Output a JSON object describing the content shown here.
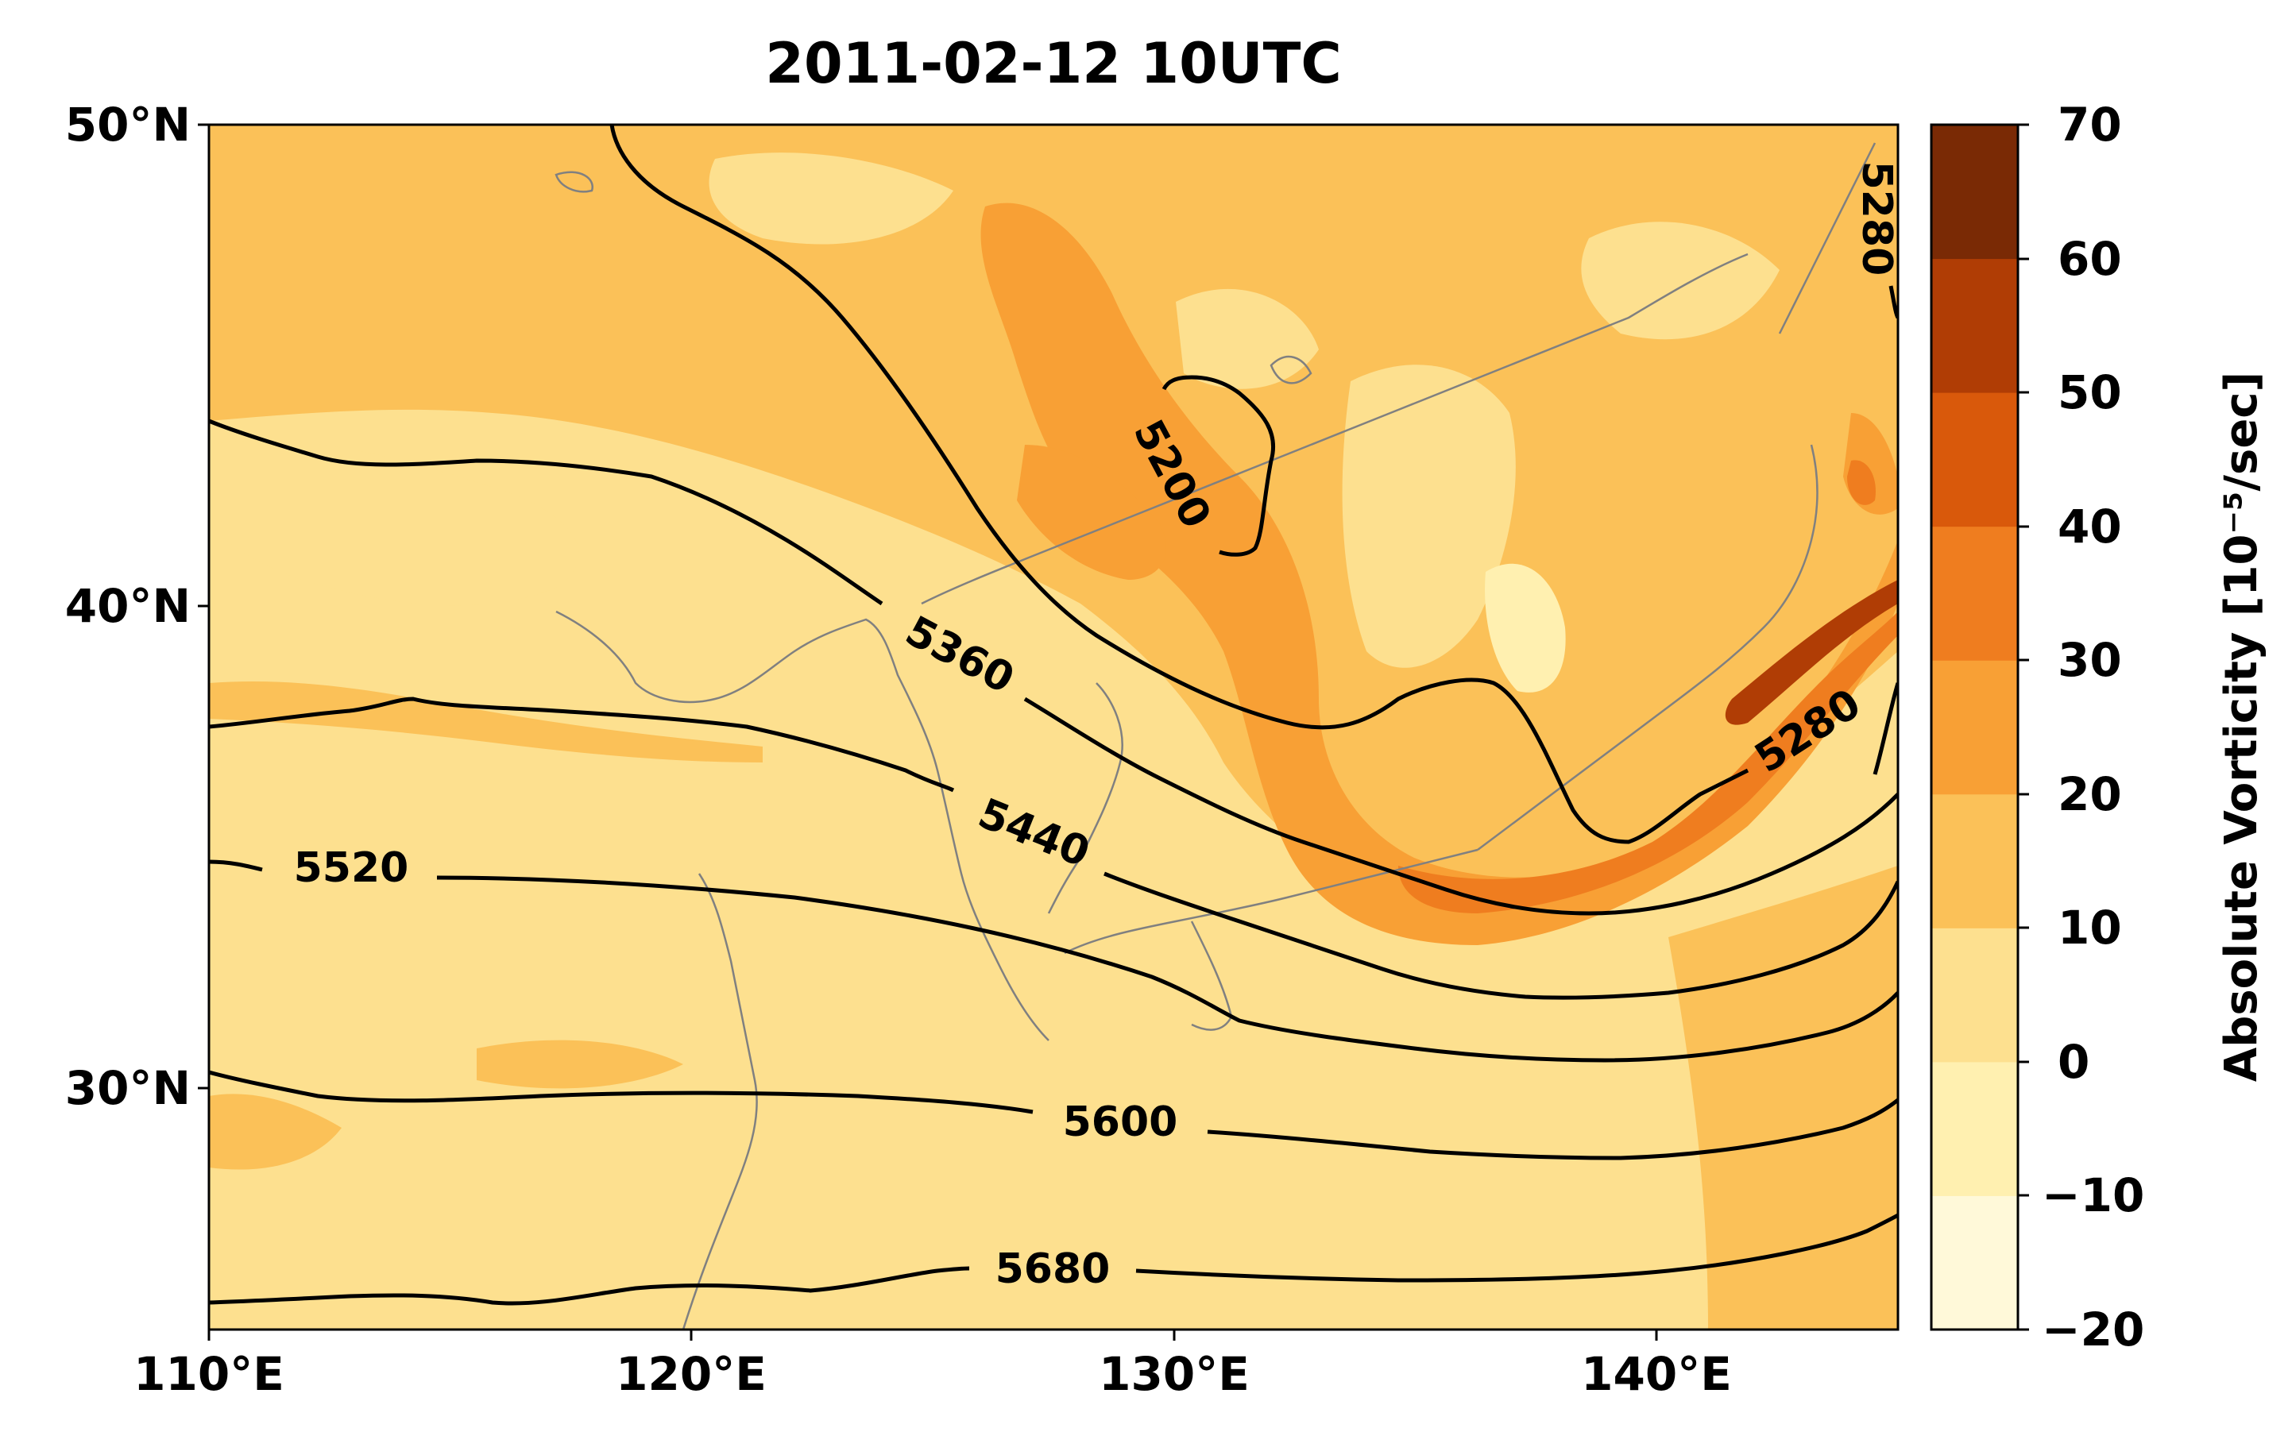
{
  "title": "2011-02-12 10UTC",
  "map": {
    "lon_range": [
      110,
      145
    ],
    "lat_range": [
      25,
      50
    ],
    "lon_ticks": [
      "110°E",
      "120°E",
      "130°E",
      "140°E"
    ],
    "lat_ticks": [
      "50°N",
      "40°N",
      "30°N"
    ],
    "coastline_color": "#808080"
  },
  "colorbar": {
    "label": "Absolute Vorticity [10⁻⁵/sec]",
    "ticks": [
      "70",
      "60",
      "50",
      "40",
      "30",
      "20",
      "10",
      "0",
      "−10",
      "−20"
    ],
    "levels": [
      -20,
      -10,
      0,
      10,
      20,
      30,
      40,
      50,
      60,
      70
    ],
    "colors": [
      "#fff9d9",
      "#fff0b0",
      "#fde08f",
      "#fbc158",
      "#f8a035",
      "#ef7d1f",
      "#d9590b",
      "#b03d05",
      "#7a2a05"
    ]
  },
  "contours": {
    "labels": [
      "5200",
      "5280",
      "5280",
      "5360",
      "5440",
      "5520",
      "5600",
      "5680"
    ]
  }
}
